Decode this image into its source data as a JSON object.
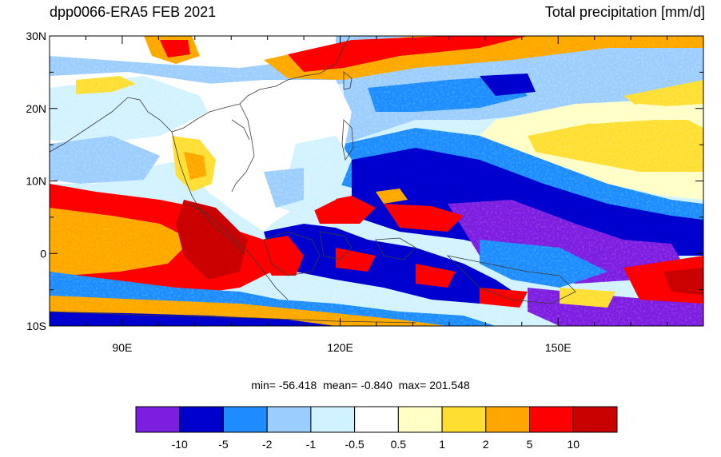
{
  "header": {
    "title_left": "dpp0066-ERA5 FEB 2021",
    "title_right": "Total precipitation [mm/d]"
  },
  "map": {
    "lon_range": [
      80,
      170
    ],
    "lat_range": [
      -10,
      30
    ],
    "x_ticks": [
      {
        "value": 90,
        "label": "90E"
      },
      {
        "value": 120,
        "label": "120E"
      },
      {
        "value": 150,
        "label": "150E"
      }
    ],
    "y_ticks": [
      {
        "value": 30,
        "label": "30N"
      },
      {
        "value": 20,
        "label": "20N"
      },
      {
        "value": 10,
        "label": "10N"
      },
      {
        "value": 0,
        "label": "0"
      },
      {
        "value": -10,
        "label": "10S"
      }
    ],
    "field_description_colors": [
      "#7b1ee0",
      "#0000cc",
      "#1e8cff",
      "#9ccdff",
      "#d1f2ff",
      "#ffffff",
      "#ffffc6",
      "#ffde32",
      "#ffa600",
      "#ff0000",
      "#c80000"
    ]
  },
  "stats": {
    "min_label": "min=",
    "min_value": "-56.418",
    "mean_label": "mean=",
    "mean_value": "-0.840",
    "max_label": "max=",
    "max_value": "201.548"
  },
  "colorbar": {
    "colors": [
      "#7b1ee0",
      "#0000cc",
      "#1e8cff",
      "#9ccdff",
      "#d1f2ff",
      "#ffffff",
      "#ffffc6",
      "#ffde32",
      "#ffa600",
      "#ff0000",
      "#c80000"
    ],
    "labels": [
      "-10",
      "-5",
      "-2",
      "-1",
      "-0.5",
      "0.5",
      "1",
      "2",
      "5",
      "10"
    ]
  }
}
